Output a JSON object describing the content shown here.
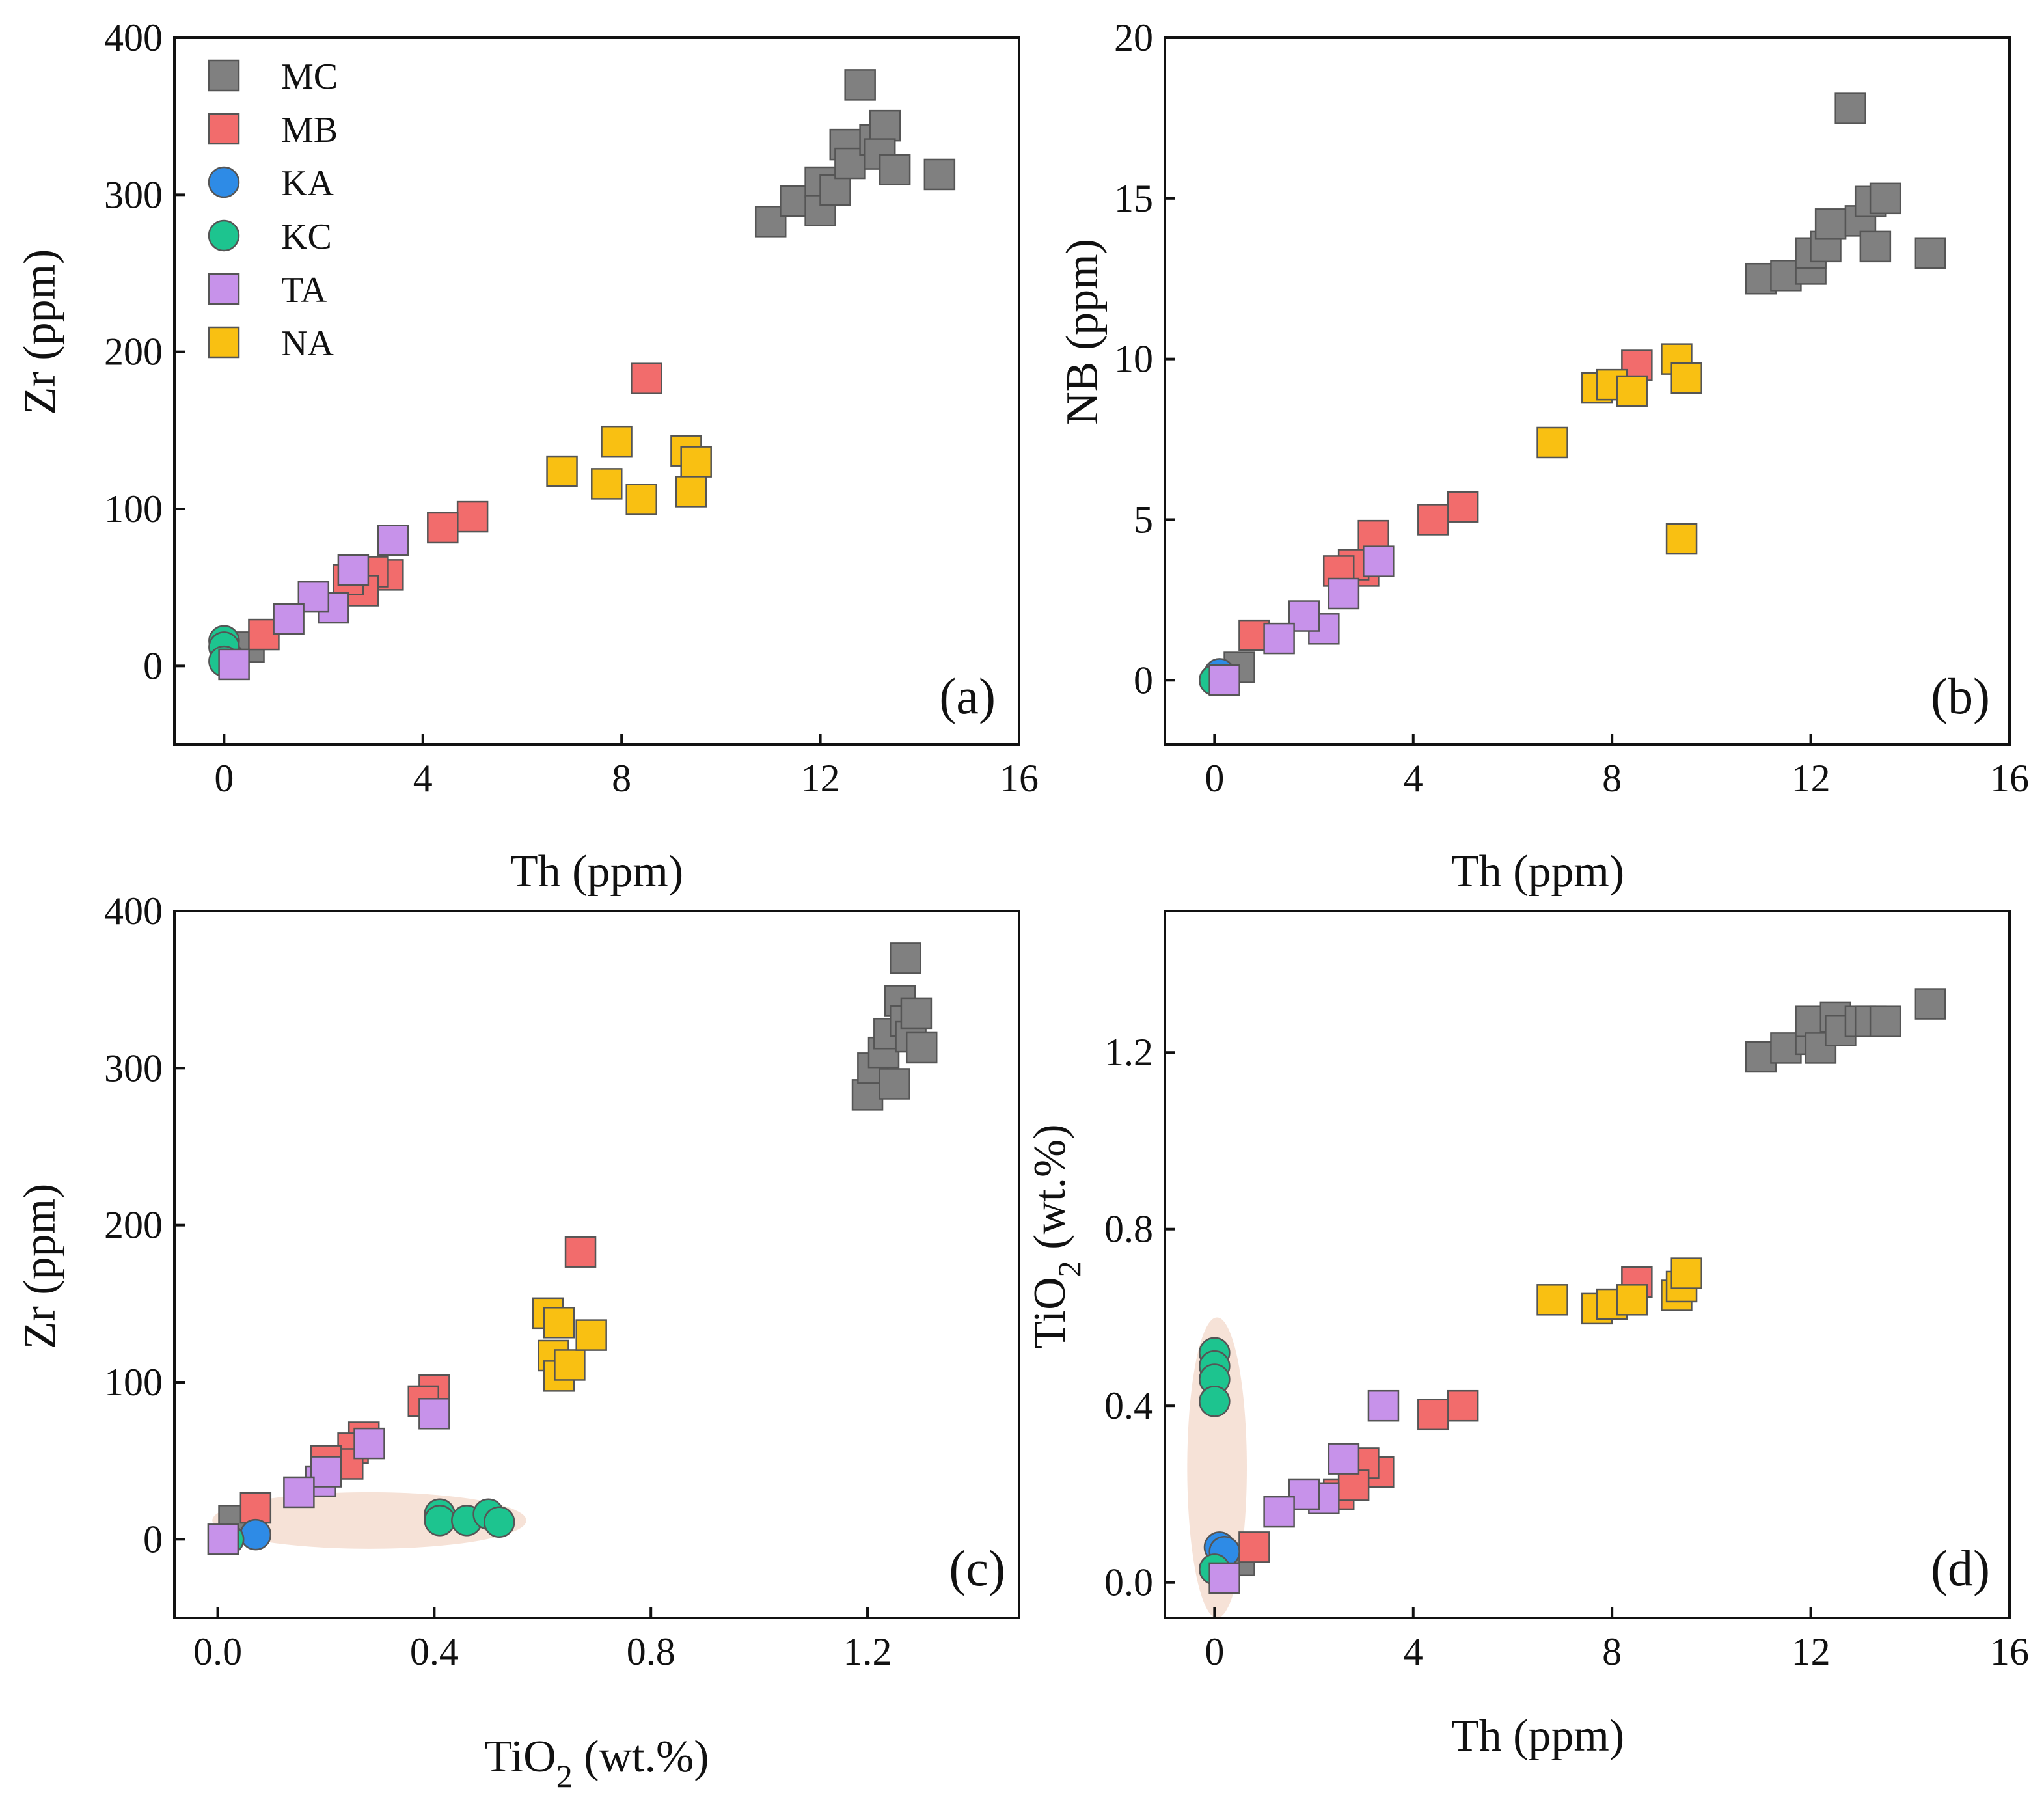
{
  "figure": {
    "legend": [
      {
        "key": "MC",
        "label": "MC",
        "shape": "square",
        "color": "#808080"
      },
      {
        "key": "MB",
        "label": "MB",
        "shape": "square",
        "color": "#F26C6C"
      },
      {
        "key": "KA",
        "label": "KA",
        "shape": "circle",
        "color": "#2E8BE6"
      },
      {
        "key": "KC",
        "label": "KC",
        "shape": "circle",
        "color": "#1DC48F"
      },
      {
        "key": "TA",
        "label": "TA",
        "shape": "square",
        "color": "#C792EA"
      },
      {
        "key": "NA",
        "label": "NA",
        "shape": "square",
        "color": "#F9C012"
      }
    ],
    "highlight_color": "#F5DDD0"
  },
  "chart_data": [
    {
      "type": "scatter",
      "panel_label": "(a)",
      "xlabel": "Th (ppm)",
      "ylabel": "Zr (ppm)",
      "xlim": [
        -1,
        16
      ],
      "ylim": [
        -50,
        400
      ],
      "xticks": [
        0,
        4,
        8,
        12,
        16
      ],
      "yticks": [
        0,
        100,
        200,
        300,
        400
      ],
      "xtick_labels": [
        "0",
        "4",
        "8",
        "12",
        "16"
      ],
      "ytick_labels": [
        "0",
        "100",
        "200",
        "300",
        "400"
      ],
      "legend_position": "top-left",
      "series": [
        {
          "name": "MC",
          "points": [
            [
              11.0,
              283
            ],
            [
              11.5,
              296
            ],
            [
              12.0,
              308
            ],
            [
              12.0,
              290
            ],
            [
              12.3,
              303
            ],
            [
              12.5,
              332
            ],
            [
              12.6,
              320
            ],
            [
              12.8,
              370
            ],
            [
              13.1,
              335
            ],
            [
              13.3,
              344
            ],
            [
              13.2,
              326
            ],
            [
              13.5,
              316
            ],
            [
              14.4,
              313
            ],
            [
              0.5,
              12
            ]
          ]
        },
        {
          "name": "MB",
          "points": [
            [
              8.5,
              183
            ],
            [
              5.0,
              95
            ],
            [
              4.4,
              88
            ],
            [
              3.3,
              58
            ],
            [
              3.0,
              60
            ],
            [
              2.8,
              48
            ],
            [
              2.5,
              55
            ],
            [
              0.8,
              20
            ]
          ]
        },
        {
          "name": "KA",
          "points": [
            [
              0.1,
              5
            ]
          ]
        },
        {
          "name": "KC",
          "points": [
            [
              0.0,
              16
            ],
            [
              0.0,
              12
            ],
            [
              0.0,
              3
            ]
          ]
        },
        {
          "name": "TA",
          "points": [
            [
              3.4,
              80
            ],
            [
              2.6,
              61
            ],
            [
              2.2,
              37
            ],
            [
              1.8,
              44
            ],
            [
              1.3,
              30
            ],
            [
              0.2,
              1
            ]
          ]
        },
        {
          "name": "NA",
          "points": [
            [
              6.8,
              124
            ],
            [
              7.7,
              116
            ],
            [
              7.9,
              143
            ],
            [
              8.4,
              106
            ],
            [
              9.3,
              137
            ],
            [
              9.5,
              130
            ],
            [
              9.4,
              111
            ]
          ]
        }
      ]
    },
    {
      "type": "scatter",
      "panel_label": "(b)",
      "xlabel": "Th (ppm)",
      "ylabel": "NB (ppm)",
      "xlim": [
        -1,
        16
      ],
      "ylim": [
        -2,
        20
      ],
      "xticks": [
        0,
        4,
        8,
        12,
        16
      ],
      "yticks": [
        0,
        5,
        10,
        15,
        20
      ],
      "xtick_labels": [
        "0",
        "4",
        "8",
        "12",
        "16"
      ],
      "ytick_labels": [
        "0",
        "5",
        "10",
        "15",
        "20"
      ],
      "series": [
        {
          "name": "MC",
          "points": [
            [
              11.0,
              12.5
            ],
            [
              11.5,
              12.6
            ],
            [
              12.0,
              12.8
            ],
            [
              12.0,
              13.3
            ],
            [
              12.3,
              13.5
            ],
            [
              12.4,
              14.2
            ],
            [
              12.8,
              17.8
            ],
            [
              13.0,
              14.3
            ],
            [
              13.2,
              14.9
            ],
            [
              13.5,
              15.0
            ],
            [
              13.3,
              13.5
            ],
            [
              14.4,
              13.3
            ],
            [
              0.5,
              0.4
            ]
          ]
        },
        {
          "name": "MB",
          "points": [
            [
              8.5,
              9.8
            ],
            [
              5.0,
              5.4
            ],
            [
              4.4,
              5.0
            ],
            [
              3.2,
              4.5
            ],
            [
              3.0,
              3.4
            ],
            [
              2.8,
              3.6
            ],
            [
              2.5,
              3.4
            ],
            [
              0.8,
              1.4
            ]
          ]
        },
        {
          "name": "KA",
          "points": [
            [
              0.1,
              0.2
            ]
          ]
        },
        {
          "name": "KC",
          "points": [
            [
              0.0,
              0.0
            ]
          ]
        },
        {
          "name": "TA",
          "points": [
            [
              3.3,
              3.7
            ],
            [
              2.6,
              2.7
            ],
            [
              2.2,
              1.6
            ],
            [
              1.8,
              2.0
            ],
            [
              1.3,
              1.3
            ],
            [
              0.2,
              0.0
            ]
          ]
        },
        {
          "name": "NA",
          "points": [
            [
              6.8,
              7.4
            ],
            [
              7.7,
              9.1
            ],
            [
              8.0,
              9.2
            ],
            [
              8.4,
              9.0
            ],
            [
              9.3,
              10.0
            ],
            [
              9.5,
              9.4
            ],
            [
              9.4,
              4.4
            ]
          ]
        }
      ]
    },
    {
      "type": "scatter",
      "panel_label": "(c)",
      "xlabel": "TiO2 (wt.%)",
      "xlabel_main": "TiO",
      "xlabel_sub": "2",
      "xlabel_rest": " (wt.%)",
      "ylabel": "Zr (ppm)",
      "xlim": [
        -0.08,
        1.48
      ],
      "ylim": [
        -50,
        400
      ],
      "xticks": [
        0.0,
        0.4,
        0.8,
        1.2
      ],
      "yticks": [
        0,
        100,
        200,
        300,
        400
      ],
      "xtick_labels": [
        "0.0",
        "0.4",
        "0.8",
        "1.2"
      ],
      "ytick_labels": [
        "0",
        "100",
        "200",
        "300",
        "400"
      ],
      "highlight": {
        "cx": 0.28,
        "cy": 12,
        "rx": 0.29,
        "ry": 18
      },
      "series": [
        {
          "name": "MC",
          "points": [
            [
              1.2,
              283
            ],
            [
              1.21,
              300
            ],
            [
              1.23,
              310
            ],
            [
              1.24,
              322
            ],
            [
              1.25,
              290
            ],
            [
              1.26,
              343
            ],
            [
              1.27,
              370
            ],
            [
              1.27,
              330
            ],
            [
              1.28,
              320
            ],
            [
              1.29,
              335
            ],
            [
              1.3,
              313
            ],
            [
              0.03,
              12
            ]
          ]
        },
        {
          "name": "MB",
          "points": [
            [
              0.67,
              183
            ],
            [
              0.4,
              95
            ],
            [
              0.38,
              88
            ],
            [
              0.27,
              65
            ],
            [
              0.25,
              58
            ],
            [
              0.24,
              48
            ],
            [
              0.2,
              50
            ],
            [
              0.07,
              20
            ]
          ]
        },
        {
          "name": "KA",
          "points": [
            [
              0.07,
              3
            ]
          ]
        },
        {
          "name": "KC",
          "points": [
            [
              0.41,
              16
            ],
            [
              0.41,
              12
            ],
            [
              0.46,
              12
            ],
            [
              0.5,
              16
            ],
            [
              0.52,
              11
            ],
            [
              0.02,
              0
            ]
          ]
        },
        {
          "name": "TA",
          "points": [
            [
              0.4,
              80
            ],
            [
              0.28,
              61
            ],
            [
              0.19,
              37
            ],
            [
              0.2,
              43
            ],
            [
              0.15,
              30
            ],
            [
              0.01,
              0
            ]
          ]
        },
        {
          "name": "NA",
          "points": [
            [
              0.61,
              144
            ],
            [
              0.63,
              138
            ],
            [
              0.62,
              117
            ],
            [
              0.63,
              104
            ],
            [
              0.65,
              111
            ],
            [
              0.69,
              130
            ]
          ]
        }
      ]
    },
    {
      "type": "scatter",
      "panel_label": "(d)",
      "xlabel": "Th (ppm)",
      "ylabel": "TiO2 (wt.%)",
      "ylabel_main": "TiO",
      "ylabel_sub": "2",
      "ylabel_rest": " (wt.%)",
      "xlim": [
        -1,
        16
      ],
      "ylim": [
        -0.08,
        1.52
      ],
      "xticks": [
        0,
        4,
        8,
        12,
        16
      ],
      "yticks": [
        0.0,
        0.4,
        0.8,
        1.2
      ],
      "xtick_labels": [
        "0",
        "4",
        "8",
        "12",
        "16"
      ],
      "ytick_labels": [
        "0.0",
        "0.4",
        "0.8",
        "1.2"
      ],
      "highlight": {
        "cx": 0.05,
        "cy": 0.26,
        "rx": 0.6,
        "ry": 0.34
      },
      "series": [
        {
          "name": "MC",
          "points": [
            [
              11.0,
              1.19
            ],
            [
              11.5,
              1.21
            ],
            [
              12.0,
              1.23
            ],
            [
              12.0,
              1.27
            ],
            [
              12.2,
              1.21
            ],
            [
              12.5,
              1.28
            ],
            [
              12.6,
              1.25
            ],
            [
              13.0,
              1.27
            ],
            [
              13.2,
              1.27
            ],
            [
              13.5,
              1.27
            ],
            [
              14.4,
              1.31
            ],
            [
              0.5,
              0.05
            ]
          ]
        },
        {
          "name": "MB",
          "points": [
            [
              8.5,
              0.68
            ],
            [
              5.0,
              0.4
            ],
            [
              4.4,
              0.38
            ],
            [
              3.3,
              0.25
            ],
            [
              3.0,
              0.27
            ],
            [
              2.5,
              0.2
            ],
            [
              2.8,
              0.22
            ],
            [
              0.8,
              0.08
            ]
          ]
        },
        {
          "name": "KA",
          "points": [
            [
              0.1,
              0.08
            ],
            [
              0.2,
              0.07
            ]
          ]
        },
        {
          "name": "KC",
          "points": [
            [
              0.0,
              0.52
            ],
            [
              0.0,
              0.49
            ],
            [
              0.0,
              0.46
            ],
            [
              0.0,
              0.41
            ],
            [
              0.0,
              0.03
            ]
          ]
        },
        {
          "name": "TA",
          "points": [
            [
              3.4,
              0.4
            ],
            [
              2.6,
              0.28
            ],
            [
              2.2,
              0.19
            ],
            [
              1.8,
              0.2
            ],
            [
              1.3,
              0.16
            ],
            [
              0.2,
              0.01
            ]
          ]
        },
        {
          "name": "NA",
          "points": [
            [
              6.8,
              0.64
            ],
            [
              7.7,
              0.62
            ],
            [
              8.0,
              0.63
            ],
            [
              8.4,
              0.64
            ],
            [
              9.3,
              0.65
            ],
            [
              9.4,
              0.67
            ],
            [
              9.5,
              0.7
            ]
          ]
        }
      ]
    }
  ]
}
